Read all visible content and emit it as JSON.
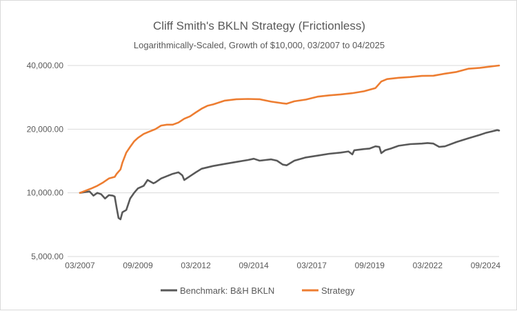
{
  "chart_data": {
    "type": "line",
    "title": "Cliff Smith's  BKLN Strategy (Frictionless)",
    "subtitle": "Logarithmically-Scaled, Growth of $10,000, 03/2007 to 04/2025",
    "xlabel": "",
    "ylabel": "",
    "y_scale": "log",
    "ylim": [
      5000,
      40000
    ],
    "y_ticks": [
      5000,
      10000,
      20000,
      40000
    ],
    "y_tick_labels": [
      "5,000.00",
      "10,000.00",
      "20,000.00",
      "40,000.00"
    ],
    "x_range": [
      "2007-03",
      "2025-04"
    ],
    "x_ticks": [
      "2007-03",
      "2009-09",
      "2012-03",
      "2014-09",
      "2017-03",
      "2019-09",
      "2022-03",
      "2024-09"
    ],
    "x_tick_labels": [
      "03/2007",
      "09/2009",
      "03/2012",
      "09/2014",
      "03/2017",
      "09/2019",
      "03/2022",
      "09/2024"
    ],
    "grid": "horizontal",
    "legend_position": "bottom",
    "series": [
      {
        "name": "Benchmark: B&H BKLN",
        "color": "#595959",
        "x": [
          "2007-03",
          "2007-06",
          "2007-08",
          "2007-10",
          "2007-12",
          "2008-02",
          "2008-04",
          "2008-06",
          "2008-08",
          "2008-09",
          "2008-10",
          "2008-11",
          "2008-12",
          "2009-01",
          "2009-03",
          "2009-05",
          "2009-07",
          "2009-09",
          "2009-12",
          "2010-02",
          "2010-05",
          "2010-06",
          "2010-09",
          "2010-12",
          "2011-03",
          "2011-06",
          "2011-08",
          "2011-09",
          "2011-12",
          "2012-03",
          "2012-06",
          "2012-09",
          "2012-12",
          "2013-06",
          "2013-12",
          "2014-06",
          "2014-09",
          "2014-12",
          "2015-06",
          "2015-09",
          "2015-12",
          "2016-02",
          "2016-06",
          "2016-12",
          "2017-06",
          "2017-12",
          "2018-06",
          "2018-10",
          "2018-12",
          "2019-01",
          "2019-06",
          "2019-09",
          "2019-12",
          "2020-02",
          "2020-03",
          "2020-05",
          "2020-08",
          "2020-12",
          "2021-06",
          "2021-12",
          "2022-03",
          "2022-06",
          "2022-09",
          "2022-12",
          "2023-06",
          "2023-12",
          "2024-06",
          "2024-09",
          "2024-12",
          "2025-03",
          "2025-04"
        ],
        "values": [
          10000,
          10100,
          10150,
          9700,
          10000,
          9850,
          9400,
          9750,
          9700,
          9600,
          8500,
          7600,
          7500,
          8100,
          8300,
          9400,
          10000,
          10500,
          10800,
          11500,
          11100,
          11200,
          11700,
          12000,
          12300,
          12500,
          12100,
          11500,
          12000,
          12500,
          13000,
          13200,
          13400,
          13700,
          14000,
          14300,
          14500,
          14200,
          14400,
          14200,
          13600,
          13500,
          14200,
          14700,
          15000,
          15300,
          15500,
          15700,
          15200,
          15900,
          16100,
          16200,
          16600,
          16500,
          15400,
          15900,
          16200,
          16700,
          17000,
          17100,
          17200,
          17100,
          16500,
          16600,
          17400,
          18100,
          18800,
          19200,
          19500,
          19800,
          19700
        ]
      },
      {
        "name": "Strategy",
        "color": "#ED7D31",
        "x": [
          "2007-03",
          "2007-06",
          "2007-09",
          "2007-12",
          "2008-03",
          "2008-06",
          "2008-09",
          "2008-10",
          "2008-12",
          "2009-01",
          "2009-03",
          "2009-05",
          "2009-07",
          "2009-09",
          "2009-12",
          "2010-03",
          "2010-06",
          "2010-09",
          "2010-12",
          "2011-03",
          "2011-06",
          "2011-09",
          "2011-12",
          "2012-03",
          "2012-06",
          "2012-09",
          "2012-12",
          "2013-06",
          "2013-12",
          "2014-06",
          "2014-12",
          "2015-06",
          "2015-12",
          "2016-02",
          "2016-06",
          "2016-12",
          "2017-06",
          "2017-12",
          "2018-06",
          "2018-12",
          "2019-06",
          "2019-12",
          "2020-03",
          "2020-06",
          "2020-12",
          "2021-06",
          "2021-12",
          "2022-06",
          "2022-12",
          "2023-06",
          "2023-12",
          "2024-06",
          "2024-12",
          "2025-04"
        ],
        "values": [
          10000,
          10250,
          10500,
          10800,
          11200,
          11700,
          11900,
          12300,
          12900,
          13900,
          15500,
          16500,
          17500,
          18200,
          19000,
          19500,
          20000,
          20800,
          21000,
          21000,
          21500,
          22400,
          23000,
          24000,
          25000,
          25800,
          26200,
          27300,
          27700,
          27800,
          27700,
          27000,
          26500,
          26400,
          27100,
          27600,
          28500,
          28900,
          29200,
          29600,
          30200,
          31300,
          33600,
          34500,
          35000,
          35300,
          35700,
          35800,
          36600,
          37300,
          38600,
          39000,
          39600,
          40000
        ]
      }
    ]
  }
}
